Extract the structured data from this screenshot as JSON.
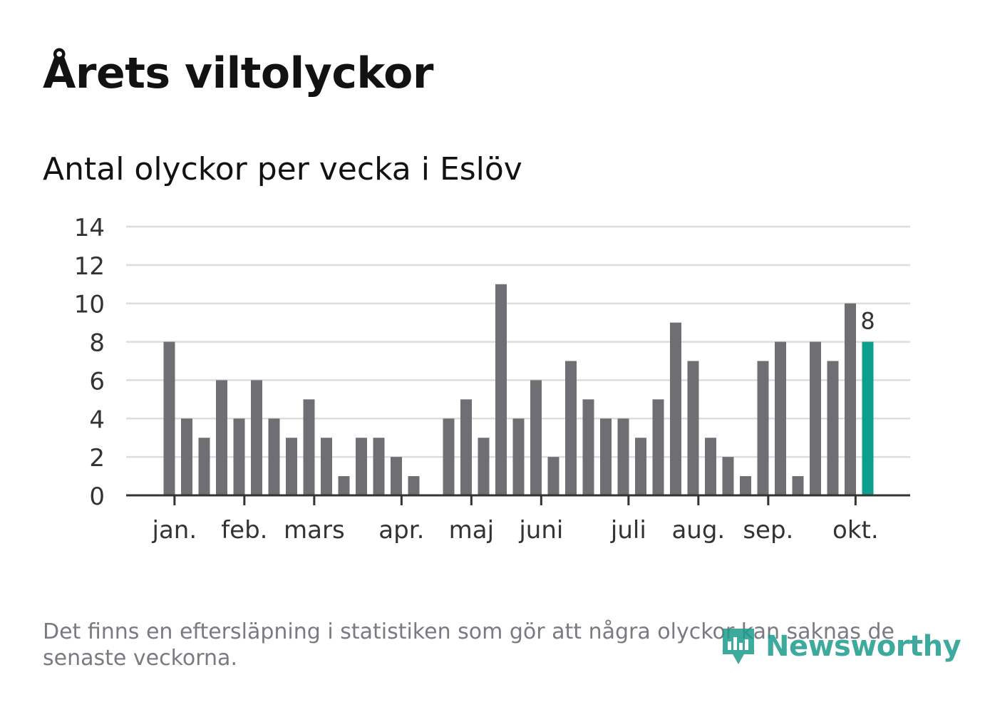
{
  "header": {
    "title": "Årets viltolyckor",
    "subtitle": "Antal olyckor per vecka i Eslöv"
  },
  "chart_data": {
    "type": "bar",
    "title": "Årets viltolyckor",
    "subtitle": "Antal olyckor per vecka i Eslöv",
    "xlabel": "",
    "ylabel": "",
    "ylim": [
      0,
      14
    ],
    "yticks": [
      0,
      2,
      4,
      6,
      8,
      10,
      12,
      14
    ],
    "grid": true,
    "values": [
      8,
      4,
      3,
      6,
      4,
      6,
      4,
      3,
      5,
      3,
      1,
      3,
      3,
      2,
      1,
      0,
      4,
      5,
      3,
      11,
      4,
      6,
      2,
      7,
      5,
      4,
      4,
      3,
      5,
      9,
      7,
      3,
      2,
      1,
      7,
      8,
      1,
      8,
      7,
      10,
      8
    ],
    "month_labels": [
      {
        "label": "jan.",
        "week_index": 0.3
      },
      {
        "label": "feb.",
        "week_index": 4.3
      },
      {
        "label": "mars",
        "week_index": 8.3
      },
      {
        "label": "apr.",
        "week_index": 13.3
      },
      {
        "label": "maj",
        "week_index": 17.3
      },
      {
        "label": "juni",
        "week_index": 21.3
      },
      {
        "label": "juli",
        "week_index": 26.3
      },
      {
        "label": "aug.",
        "week_index": 30.3
      },
      {
        "label": "sep.",
        "week_index": 34.3
      },
      {
        "label": "okt.",
        "week_index": 39.3
      }
    ],
    "highlight_index": 40,
    "highlight_label": "8",
    "colors": {
      "bar": "#6f6e73",
      "highlight": "#0d9e8f",
      "grid": "#dddddd",
      "axis": "#333333"
    }
  },
  "footer": {
    "note": "Det finns en eftersläpning i statistiken som gör att några olyckor kan saknas de senaste veckorna.",
    "brand": "Newsworthy"
  }
}
